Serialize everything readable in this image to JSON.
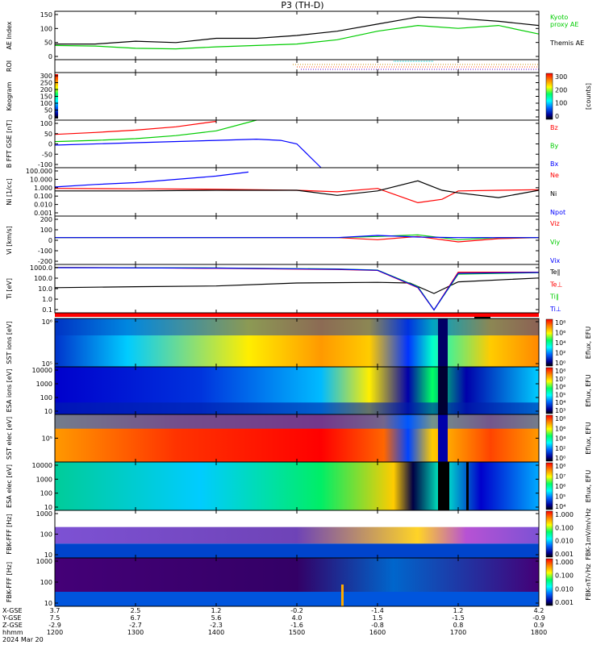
{
  "title": "P3 (TH-D)",
  "colors": {
    "black": "#000000",
    "red": "#ff0000",
    "green": "#00cc00",
    "blue": "#0000ff"
  },
  "footer": {
    "row_labels": [
      "X-GSE",
      "Y-GSE",
      "Z-GSE",
      "hhmm",
      "2024 Mar 20"
    ],
    "columns": [
      {
        "x": "3.7",
        "y": "7.5",
        "z": "-2.9",
        "t": "1200"
      },
      {
        "x": "2.5",
        "y": "6.7",
        "z": "-2.7",
        "t": "1300"
      },
      {
        "x": "1.2",
        "y": "5.6",
        "z": "-2.3",
        "t": "1400"
      },
      {
        "x": "-0.2",
        "y": "4.0",
        "z": "-1.6",
        "t": "1500"
      },
      {
        "x": "-1.4",
        "y": "1.5",
        "z": "-0.8",
        "t": "1600"
      },
      {
        "x": "1.2",
        "y": "-1.5",
        "z": "0.8",
        "t": "1700"
      },
      {
        "x": "4.2",
        "y": "-0.9",
        "z": "0.9",
        "t": "1800"
      }
    ]
  },
  "chart_data": [
    {
      "type": "line",
      "id": "ae",
      "ylabel": "AE Index",
      "yticks": [
        "150",
        "100",
        "50",
        "0"
      ],
      "ylim": [
        -10,
        160
      ],
      "series": [
        {
          "name": "Kyoto proxy AE",
          "color": "#00cc00",
          "x": [
            12.0,
            12.5,
            13.0,
            13.5,
            14.0,
            14.5,
            15.0,
            15.5,
            16.0,
            16.5,
            17.0,
            17.5,
            18.0
          ],
          "y": [
            40,
            38,
            30,
            28,
            35,
            40,
            45,
            60,
            90,
            110,
            100,
            110,
            80
          ]
        },
        {
          "name": "Themis AE",
          "color": "#000000",
          "x": [
            12.0,
            12.5,
            13.0,
            13.5,
            14.0,
            14.5,
            15.0,
            15.5,
            16.0,
            16.5,
            17.0,
            17.5,
            18.0
          ],
          "y": [
            45,
            45,
            55,
            50,
            65,
            65,
            75,
            90,
            115,
            140,
            135,
            125,
            110
          ]
        }
      ],
      "legend": [
        "Kyoto",
        "proxy AE",
        "Themis AE"
      ]
    },
    {
      "type": "bar",
      "id": "roi",
      "ylabel": "ROI"
    },
    {
      "type": "heatmap",
      "id": "keogram",
      "ylabel": "Keogram",
      "yticks": [
        "300",
        "250",
        "200",
        "150",
        "100",
        "50",
        "0"
      ],
      "colorbar": {
        "ticks": [
          "300",
          "200",
          "100",
          "0"
        ],
        "label": "[counts]"
      }
    },
    {
      "type": "line",
      "id": "bfield",
      "ylabel": "B FFT GSE [nT]",
      "yticks": [
        "100",
        "50",
        "0",
        "-50",
        "-100"
      ],
      "ylim": [
        -100,
        100
      ],
      "series": [
        {
          "name": "Bz",
          "color": "#ff0000",
          "x": [
            12.0,
            12.5,
            13.0,
            13.5,
            14.0
          ],
          "y": [
            40,
            48,
            58,
            72,
            95
          ]
        },
        {
          "name": "By",
          "color": "#00cc00",
          "x": [
            12.0,
            12.5,
            13.0,
            13.5,
            14.0,
            14.5
          ],
          "y": [
            10,
            15,
            22,
            35,
            55,
            100
          ]
        },
        {
          "name": "Bx",
          "color": "#0000ff",
          "x": [
            12.0,
            13.0,
            14.0,
            14.5,
            14.8,
            15.0,
            15.3
          ],
          "y": [
            -5,
            5,
            15,
            20,
            15,
            0,
            -100
          ]
        }
      ]
    },
    {
      "type": "line",
      "id": "density",
      "ylabel": "Ni [1/cc]",
      "yticks": [
        "100.000",
        "10.000",
        "1.000",
        "0.100",
        "0.010",
        "0.001"
      ],
      "yscale": "log",
      "series": [
        {
          "name": "Ne",
          "color": "#ff0000",
          "x": [
            12.0,
            13.0,
            14.0,
            15.0,
            15.5,
            16.0,
            16.5,
            16.8,
            17.0,
            17.5,
            18.0
          ],
          "y": [
            1.0,
            0.9,
            0.8,
            0.6,
            0.4,
            1.0,
            0.02,
            0.05,
            0.5,
            0.6,
            0.7
          ]
        },
        {
          "name": "Ni",
          "color": "#000000",
          "x": [
            12.0,
            13.0,
            14.0,
            15.0,
            15.5,
            16.0,
            16.5,
            16.8,
            17.0,
            17.5,
            18.0
          ],
          "y": [
            0.5,
            0.5,
            0.6,
            0.6,
            0.15,
            0.5,
            8.0,
            0.6,
            0.3,
            0.08,
            0.6
          ]
        },
        {
          "name": "Npot",
          "color": "#0000ff",
          "x": [
            12.0,
            12.5,
            13.0,
            13.5,
            14.0,
            14.4
          ],
          "y": [
            1.5,
            3.0,
            5.0,
            12.0,
            30.0,
            90.0
          ]
        }
      ]
    },
    {
      "type": "line",
      "id": "velocity",
      "ylabel": "Vi [km/s]",
      "yticks": [
        "200",
        "100",
        "0",
        "-100",
        "-200"
      ],
      "ylim": [
        -250,
        200
      ],
      "series": [
        {
          "name": "Viz",
          "color": "#ff0000",
          "x": [
            12.0,
            14.0,
            15.5,
            16.0,
            16.5,
            17.0,
            17.5,
            18.0
          ],
          "y": [
            0,
            0,
            0,
            -20,
            10,
            -40,
            -10,
            0
          ]
        },
        {
          "name": "Viy",
          "color": "#00cc00",
          "x": [
            12.0,
            14.0,
            15.5,
            16.0,
            16.5,
            17.0,
            17.5,
            18.0
          ],
          "y": [
            0,
            0,
            0,
            10,
            25,
            -20,
            0,
            0
          ]
        },
        {
          "name": "Vix",
          "color": "#0000ff",
          "x": [
            12.0,
            14.0,
            15.5,
            16.0,
            16.5,
            17.0,
            18.0
          ],
          "y": [
            0,
            0,
            0,
            20,
            5,
            0,
            0
          ]
        }
      ]
    },
    {
      "type": "line",
      "id": "temperature",
      "ylabel": "Ti [eV]",
      "yticks": [
        "1000.0",
        "100.0",
        "10.0",
        "1.0",
        "0.1"
      ],
      "yscale": "log",
      "series": [
        {
          "name": "Te∥",
          "color": "#000000",
          "x": [
            12.0,
            13.0,
            14.0,
            15.0,
            16.0,
            16.4,
            16.7,
            17.0,
            18.0
          ],
          "y": [
            20,
            25,
            30,
            60,
            70,
            60,
            5,
            80,
            200
          ]
        },
        {
          "name": "Te⊥",
          "color": "#ff0000",
          "x": [
            12.0,
            14.0,
            15.5,
            16.0,
            16.5,
            16.7,
            17.0,
            18.0
          ],
          "y": [
            2500,
            2000,
            1500,
            1200,
            20,
            0.1,
            800,
            800
          ]
        },
        {
          "name": "Ti∥",
          "color": "#00cc00",
          "x": [
            12.0,
            14.0,
            15.5,
            16.0,
            16.5,
            16.7,
            17.0,
            18.0
          ],
          "y": [
            2400,
            2200,
            1700,
            1300,
            25,
            0.1,
            500,
            700
          ]
        },
        {
          "name": "Ti⊥",
          "color": "#0000ff",
          "x": [
            12.0,
            14.0,
            15.5,
            16.0,
            16.5,
            16.7,
            17.0,
            18.0
          ],
          "y": [
            2300,
            2100,
            1600,
            1250,
            22,
            0.1,
            600,
            750
          ]
        }
      ]
    },
    {
      "type": "heatmap",
      "id": "sst_i",
      "ylabel": "SST ions [eV]",
      "yticks": [
        "10⁶",
        "10⁵"
      ],
      "colorbar": {
        "ticks": [
          "10⁸",
          "10⁶",
          "10⁴",
          "10²",
          "10⁰"
        ],
        "label": "Eflux, EFU"
      }
    },
    {
      "type": "heatmap",
      "id": "esa_i",
      "ylabel": "ESA ions [eV]",
      "yticks": [
        "10000",
        "1000",
        "100",
        "10"
      ],
      "colorbar": {
        "ticks": [
          "10⁸",
          "10⁷",
          "10⁶",
          "10⁵",
          "10⁴",
          "10³"
        ],
        "label": "Eflux, EFU"
      }
    },
    {
      "type": "heatmap",
      "id": "sst_e",
      "ylabel": "SST elec [eV]",
      "yticks": [
        "10⁵"
      ],
      "colorbar": {
        "ticks": [
          "10⁸",
          "10⁶",
          "10⁴",
          "10²",
          "10⁰"
        ],
        "label": "Eflux, EFU"
      }
    },
    {
      "type": "heatmap",
      "id": "esa_e",
      "ylabel": "ESA elec [eV]",
      "yticks": [
        "10000",
        "1000",
        "100",
        "10"
      ],
      "colorbar": {
        "ticks": [
          "10⁸",
          "10⁷",
          "10⁶",
          "10⁵",
          "10⁴"
        ],
        "label": "Eflux, EFU"
      }
    },
    {
      "type": "heatmap",
      "id": "fbk1",
      "ylabel": "FBK-FFF [Hz]",
      "yticks": [
        "1000",
        "100",
        "10"
      ],
      "colorbar": {
        "ticks": [
          "1.000",
          "0.100",
          "0.010",
          "0.001"
        ],
        "label": "FBK-1mV/m/√Hz"
      }
    },
    {
      "type": "heatmap",
      "id": "fbk2",
      "ylabel": "FBK-FFF [Hz]",
      "yticks": [
        "1000",
        "100",
        "10"
      ],
      "colorbar": {
        "ticks": [
          "1.000",
          "0.100",
          "0.010",
          "0.001"
        ],
        "label": "FBK-nT/√Hz"
      }
    }
  ]
}
